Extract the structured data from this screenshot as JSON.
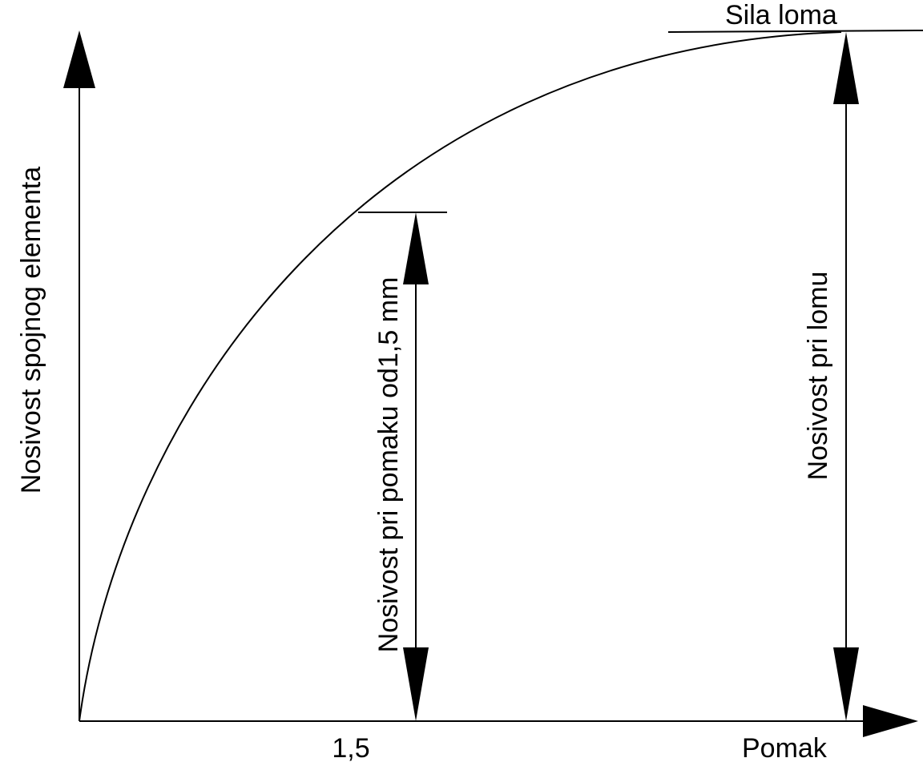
{
  "diagram": {
    "y_axis_label": "Nosivost spojnog elementa",
    "x_axis_label": "Pomak",
    "x_tick_label": "1,5",
    "failure_force_label": "Sila loma",
    "capacity_at_displacement_label": "Nosivost pri pomaku od1,5 mm",
    "capacity_at_failure_label": "Nosivost pri lomu",
    "line_color": "#000000",
    "background_color": "#ffffff"
  }
}
